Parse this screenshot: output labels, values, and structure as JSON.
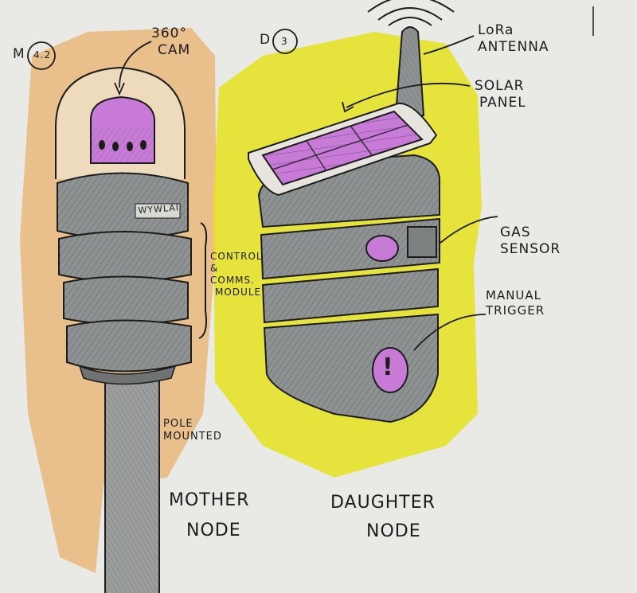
{
  "colors": {
    "paper": "#e9e9e6",
    "orange_marker": "#e9b87a",
    "yellow_marker": "#e5e21e",
    "magenta_marker": "#c77ad6",
    "grey_body": "#8e9293",
    "ink": "#1c1c1c"
  },
  "mother_node": {
    "tag_letter": "M",
    "tag_code": "4.2",
    "camera_label_line1": "360°",
    "camera_label_line2": "CAM",
    "badge_text": "WYWLAI",
    "module_label_line1": "CONTROL",
    "module_label_line2": "&",
    "module_label_line3": "COMMS.",
    "module_label_line4": "MODULE",
    "pole_label_line1": "POLE",
    "pole_label_line2": "MOUNTED",
    "name_line1": "MOTHER",
    "name_line2": "NODE"
  },
  "daughter_node": {
    "tag_letter": "D",
    "tag_code": "3",
    "antenna_label_line1": "LoRa",
    "antenna_label_line2": "ANTENNA",
    "solar_label_line1": "SOLAR",
    "solar_label_line2": "PANEL",
    "gas_label_line1": "GAS",
    "gas_label_line2": "SENSOR",
    "trigger_label_line1": "MANUAL",
    "trigger_label_line2": "TRIGGER",
    "trigger_glyph": "!",
    "name_line1": "DAUGHTER",
    "name_line2": "NODE"
  }
}
